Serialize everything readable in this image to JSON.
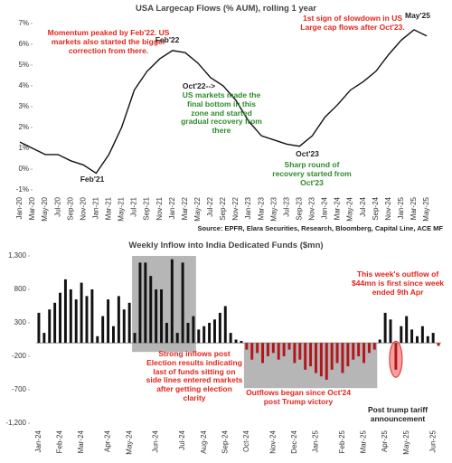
{
  "chart_data": [
    {
      "type": "line",
      "title": "USA Largecap Flows (% AUM), rolling 1 year",
      "source": "Source:  EPFR, Elara Securities, Research, Bloomberg, Capital Line, ACE MF",
      "categories": [
        "Jan-20",
        "Mar-20",
        "May-20",
        "Jul-20",
        "Sep-20",
        "Nov-20",
        "Jan-21",
        "Mar-21",
        "May-21",
        "Jul-21",
        "Sep-21",
        "Nov-21",
        "Jan-22",
        "Mar-22",
        "May-22",
        "Jul-22",
        "Sep-22",
        "Nov-22",
        "Jan-23",
        "Mar-23",
        "May-23",
        "Jul-23",
        "Sep-23",
        "Nov-23",
        "Jan-24",
        "Mar-24",
        "May-24",
        "Jul-24",
        "Sep-24",
        "Nov-24",
        "Jan-25",
        "Mar-25",
        "May-25"
      ],
      "values": [
        1.3,
        1.0,
        0.7,
        0.7,
        0.4,
        0.2,
        -0.2,
        0.7,
        2.0,
        3.8,
        4.7,
        5.3,
        5.7,
        5.6,
        5.1,
        4.4,
        4.0,
        3.3,
        2.3,
        1.6,
        1.4,
        1.2,
        1.1,
        1.6,
        2.5,
        3.1,
        3.8,
        4.2,
        4.7,
        5.5,
        6.2,
        6.7,
        6.4
      ],
      "color": "#111111",
      "ylim": [
        -1,
        7
      ],
      "yticks": [
        {
          "value": -1,
          "label": "-1%"
        },
        {
          "value": 0,
          "label": "0%"
        },
        {
          "value": 1,
          "label": "1%"
        },
        {
          "value": 2,
          "label": "2%"
        },
        {
          "value": 3,
          "label": "3%"
        },
        {
          "value": 4,
          "label": "4%"
        },
        {
          "value": 5,
          "label": "5%"
        },
        {
          "value": 6,
          "label": "6%"
        },
        {
          "value": 7,
          "label": "7%"
        }
      ],
      "annotations": [
        {
          "text": "Momentum peaked by Feb'22. US markets also started the bigger correction from there.",
          "color": "#e3241b"
        },
        {
          "text": "1st sign of  slowdown in US Large cap flows after Oct'23.",
          "color": "#e3241b"
        },
        {
          "text": "Feb'22",
          "color": "#222222"
        },
        {
          "text": "May'25",
          "color": "#222222"
        },
        {
          "text": "Oct'22-->",
          "color": "#222222"
        },
        {
          "text": "US markets made the final bottom in this zone and started gradual recovery from there",
          "color": "#2e8b2e"
        },
        {
          "text": "Oct'23",
          "color": "#222222"
        },
        {
          "text": "Sharp round of recovery started from Oct'23",
          "color": "#2e8b2e"
        },
        {
          "text": "Feb'21",
          "color": "#222222"
        }
      ]
    },
    {
      "type": "bar",
      "title": "Weekly Inflow into India Dedicated Funds ($mn)",
      "categories": [
        "Jan-24",
        null,
        null,
        null,
        "Feb-24",
        null,
        null,
        null,
        "Mar-24",
        null,
        null,
        null,
        null,
        "Apr-24",
        null,
        null,
        null,
        "May-24",
        null,
        null,
        null,
        null,
        "Jun-24",
        null,
        null,
        null,
        null,
        "Jul-24",
        null,
        null,
        null,
        "Aug-24",
        null,
        null,
        null,
        "Sep-24",
        null,
        null,
        null,
        "Oct-24",
        null,
        null,
        null,
        null,
        "Nov-24",
        null,
        null,
        null,
        "Dec-24",
        null,
        null,
        null,
        "Jan-25",
        null,
        null,
        null,
        null,
        "Feb-25",
        null,
        null,
        null,
        "Mar-25",
        null,
        null,
        null,
        "Apr-25",
        null,
        null,
        null,
        "May-25",
        null,
        null,
        null,
        null,
        "Jun-25",
        null
      ],
      "values": [
        450,
        150,
        500,
        600,
        750,
        950,
        800,
        650,
        900,
        700,
        800,
        100,
        400,
        650,
        250,
        700,
        500,
        600,
        150,
        1200,
        1200,
        1000,
        800,
        800,
        300,
        1250,
        150,
        1200,
        300,
        400,
        200,
        250,
        300,
        350,
        450,
        550,
        150,
        50,
        30,
        -100,
        -250,
        -150,
        -300,
        -200,
        -150,
        -250,
        -200,
        -100,
        -300,
        -250,
        -400,
        -350,
        -450,
        -500,
        -550,
        -400,
        -300,
        -450,
        -350,
        -250,
        -200,
        -300,
        -150,
        -100,
        50,
        450,
        350,
        -400,
        250,
        400,
        200,
        100,
        250,
        100,
        150,
        -44
      ],
      "color": "#111111",
      "negative_color": "#b3161c",
      "ylim": [
        -1200,
        1300
      ],
      "yticks": [
        {
          "value": -1200,
          "label": "-1,200"
        },
        -700,
        -200,
        300,
        800,
        {
          "value": 1300,
          "label": "1,300"
        }
      ],
      "annotations": [
        {
          "text": "This week's outflow of $44mn is first since week ended 9th Apr",
          "color": "#e3241b"
        },
        {
          "text": "Strong inflows post Election results indicating last of funds sitting on side lines entered markets after getting election clarity",
          "color": "#e3241b"
        },
        {
          "text": "Outflows began since Oct'24 post Trump victory",
          "color": "#e3241b"
        },
        {
          "text": "Post trump tariff announcement",
          "color": "#222222"
        }
      ]
    }
  ]
}
